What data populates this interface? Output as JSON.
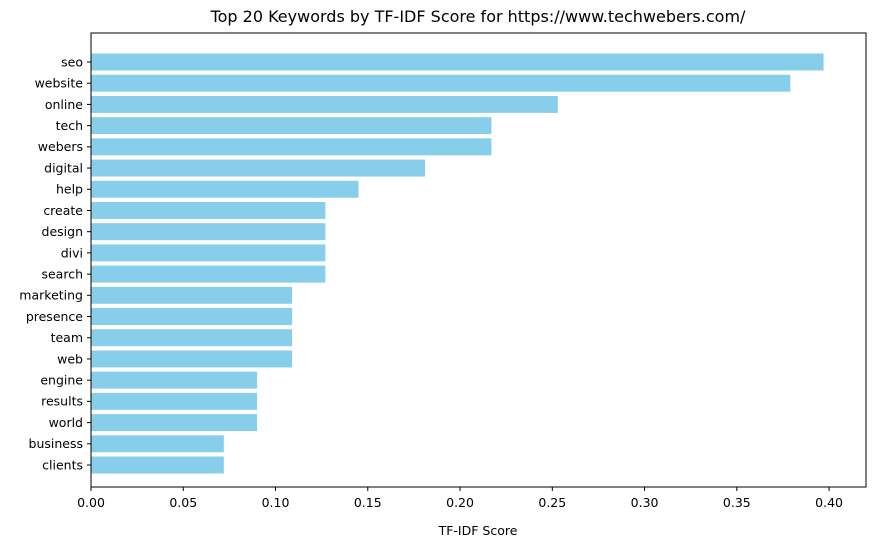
{
  "chart_data": {
    "type": "bar",
    "orientation": "horizontal",
    "title": "Top 20 Keywords by TF-IDF Score for https://www.techwebers.com/",
    "xlabel": "TF-IDF Score",
    "ylabel": "",
    "xlim": [
      0,
      0.42
    ],
    "xticks": [
      "0.00",
      "0.05",
      "0.10",
      "0.15",
      "0.20",
      "0.25",
      "0.30",
      "0.35",
      "0.40"
    ],
    "grid": false,
    "bar_color": "#87ceeb",
    "categories": [
      "seo",
      "website",
      "online",
      "tech",
      "webers",
      "digital",
      "help",
      "create",
      "design",
      "divi",
      "search",
      "marketing",
      "presence",
      "team",
      "web",
      "engine",
      "results",
      "world",
      "business",
      "clients"
    ],
    "values": [
      0.397,
      0.379,
      0.253,
      0.217,
      0.217,
      0.181,
      0.145,
      0.127,
      0.127,
      0.127,
      0.127,
      0.109,
      0.109,
      0.109,
      0.109,
      0.09,
      0.09,
      0.09,
      0.072,
      0.072
    ]
  }
}
